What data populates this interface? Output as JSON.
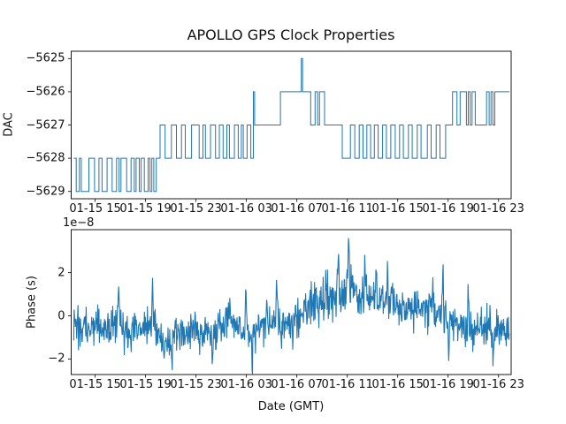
{
  "figure": {
    "background": "#ffffff",
    "line_color": "#1f77b4",
    "axis_color": "#000000"
  },
  "chart_data": [
    {
      "type": "line",
      "subplot": "top",
      "title": "APOLLO GPS Clock Properties",
      "ylabel": "DAC",
      "xlim_hours": [
        13.1,
        48.0
      ],
      "ylim": [
        -5629.22,
        -5624.78
      ],
      "ytick_values": [
        -5625,
        -5626,
        -5627,
        -5628,
        -5629
      ],
      "yticklabels": [
        "−5625",
        "−5626",
        "−5627",
        "−5628",
        "−5629"
      ],
      "xtick_hours": [
        15,
        19,
        23,
        27,
        31,
        35,
        39,
        43,
        47
      ],
      "xticklabels": [
        "01-15 15",
        "01-15 19",
        "01-15 23",
        "01-16 03",
        "01-16 07",
        "01-16 11",
        "01-16 15",
        "01-16 19",
        "01-16 23"
      ],
      "grid": false,
      "step_points": [
        [
          13.3,
          -5628
        ],
        [
          13.5,
          -5629
        ],
        [
          13.75,
          -5628
        ],
        [
          13.9,
          -5629
        ],
        [
          14.5,
          -5628
        ],
        [
          14.95,
          -5629
        ],
        [
          15.3,
          -5628
        ],
        [
          15.55,
          -5629
        ],
        [
          15.95,
          -5628
        ],
        [
          16.35,
          -5629
        ],
        [
          16.7,
          -5628
        ],
        [
          16.9,
          -5629
        ],
        [
          17.05,
          -5628
        ],
        [
          17.5,
          -5629
        ],
        [
          17.85,
          -5628
        ],
        [
          18.1,
          -5629
        ],
        [
          18.25,
          -5628
        ],
        [
          18.5,
          -5629
        ],
        [
          18.65,
          -5628
        ],
        [
          18.9,
          -5629
        ],
        [
          19.2,
          -5628
        ],
        [
          19.35,
          -5629
        ],
        [
          19.5,
          -5628
        ],
        [
          19.65,
          -5629
        ],
        [
          19.85,
          -5628
        ],
        [
          20.15,
          -5627
        ],
        [
          20.55,
          -5628
        ],
        [
          21.05,
          -5627
        ],
        [
          21.45,
          -5628
        ],
        [
          21.85,
          -5627
        ],
        [
          22.15,
          -5628
        ],
        [
          22.65,
          -5627
        ],
        [
          23.25,
          -5628
        ],
        [
          23.55,
          -5627
        ],
        [
          23.75,
          -5628
        ],
        [
          24.15,
          -5627
        ],
        [
          24.55,
          -5628
        ],
        [
          24.85,
          -5627
        ],
        [
          25.15,
          -5628
        ],
        [
          25.45,
          -5627
        ],
        [
          25.65,
          -5628
        ],
        [
          26.05,
          -5627
        ],
        [
          26.35,
          -5628
        ],
        [
          26.6,
          -5627
        ],
        [
          26.75,
          -5628
        ],
        [
          27.05,
          -5627
        ],
        [
          27.35,
          -5628
        ],
        [
          27.55,
          -5626
        ],
        [
          27.65,
          -5627
        ],
        [
          29.7,
          -5626
        ],
        [
          31.35,
          -5625
        ],
        [
          31.45,
          -5626
        ],
        [
          32.1,
          -5627
        ],
        [
          32.45,
          -5626
        ],
        [
          32.65,
          -5627
        ],
        [
          32.8,
          -5626
        ],
        [
          33.2,
          -5627
        ],
        [
          34.6,
          -5628
        ],
        [
          35.25,
          -5627
        ],
        [
          35.6,
          -5628
        ],
        [
          35.95,
          -5627
        ],
        [
          36.25,
          -5628
        ],
        [
          36.55,
          -5627
        ],
        [
          36.85,
          -5628
        ],
        [
          37.15,
          -5627
        ],
        [
          37.45,
          -5628
        ],
        [
          37.8,
          -5627
        ],
        [
          38.1,
          -5628
        ],
        [
          38.45,
          -5627
        ],
        [
          38.8,
          -5628
        ],
        [
          39.15,
          -5627
        ],
        [
          39.45,
          -5628
        ],
        [
          39.85,
          -5627
        ],
        [
          40.15,
          -5628
        ],
        [
          40.55,
          -5627
        ],
        [
          40.85,
          -5628
        ],
        [
          41.35,
          -5627
        ],
        [
          41.65,
          -5628
        ],
        [
          42.05,
          -5627
        ],
        [
          42.35,
          -5628
        ],
        [
          42.8,
          -5627
        ],
        [
          43.35,
          -5626
        ],
        [
          43.7,
          -5627
        ],
        [
          43.95,
          -5626
        ],
        [
          44.45,
          -5627
        ],
        [
          44.6,
          -5626
        ],
        [
          44.75,
          -5627
        ],
        [
          44.9,
          -5626
        ],
        [
          45.15,
          -5627
        ],
        [
          46.05,
          -5626
        ],
        [
          46.25,
          -5627
        ],
        [
          46.4,
          -5626
        ],
        [
          46.55,
          -5627
        ],
        [
          46.7,
          -5626
        ],
        [
          47.85,
          -5626
        ]
      ]
    },
    {
      "type": "line",
      "subplot": "bottom",
      "ylabel": "Phase (s)",
      "xlabel": "Date (GMT)",
      "offset_text": "1e−8",
      "unit": "1e-8 s",
      "xlim_hours": [
        13.1,
        48.0
      ],
      "ylim": [
        -2.72,
        3.99
      ],
      "ytick_values": [
        2,
        0,
        -2
      ],
      "yticklabels": [
        "2",
        "0",
        "−2"
      ],
      "xtick_hours": [
        15,
        19,
        23,
        27,
        31,
        35,
        39,
        43,
        47
      ],
      "xticklabels": [
        "01-15 15",
        "01-15 19",
        "01-15 23",
        "01-16 03",
        "01-16 07",
        "01-16 11",
        "01-16 15",
        "01-16 19",
        "01-16 23"
      ],
      "grid": false,
      "noise_model": {
        "seed": 20,
        "t0": 13.3,
        "t1": 47.85,
        "dt": 0.034,
        "trend": [
          [
            13.3,
            -0.6
          ],
          [
            14.5,
            -0.55
          ],
          [
            16,
            -0.5
          ],
          [
            16.8,
            -0.35
          ],
          [
            17.6,
            -0.7
          ],
          [
            18.5,
            -0.55
          ],
          [
            19.3,
            -0.35
          ],
          [
            19.9,
            -0.8
          ],
          [
            20.8,
            -1.1
          ],
          [
            21.6,
            -0.8
          ],
          [
            22.5,
            -0.7
          ],
          [
            23.5,
            -0.65
          ],
          [
            24.2,
            -0.8
          ],
          [
            25,
            -0.6
          ],
          [
            25.7,
            -0.25
          ],
          [
            26.3,
            -0.6
          ],
          [
            27,
            -0.8
          ],
          [
            27.6,
            -0.9
          ],
          [
            28.2,
            -0.6
          ],
          [
            28.8,
            -0.35
          ],
          [
            29.4,
            -0.2
          ],
          [
            30,
            -0.4
          ],
          [
            30.6,
            -0.45
          ],
          [
            31.2,
            -0.2
          ],
          [
            31.8,
            0.3
          ],
          [
            32.3,
            0.6
          ],
          [
            32.8,
            0.55
          ],
          [
            33.4,
            0.75
          ],
          [
            34,
            0.9
          ],
          [
            34.6,
            1
          ],
          [
            35.1,
            1.25
          ],
          [
            35.5,
            1
          ],
          [
            36,
            0.85
          ],
          [
            36.6,
            0.9
          ],
          [
            37.2,
            0.7
          ],
          [
            37.8,
            0.65
          ],
          [
            38.4,
            0.6
          ],
          [
            39,
            0.45
          ],
          [
            39.6,
            0.5
          ],
          [
            40.2,
            0.3
          ],
          [
            40.8,
            0.35
          ],
          [
            41.4,
            0.2
          ],
          [
            42,
            0.15
          ],
          [
            42.6,
            0
          ],
          [
            43.2,
            -0.4
          ],
          [
            43.8,
            -0.3
          ],
          [
            44.4,
            -0.45
          ],
          [
            45,
            -0.55
          ],
          [
            45.6,
            -0.5
          ],
          [
            46.2,
            -0.6
          ],
          [
            46.8,
            -0.55
          ],
          [
            47.4,
            -0.6
          ],
          [
            47.85,
            -0.8
          ]
        ],
        "sigma": [
          [
            13.3,
            0.42
          ],
          [
            29,
            0.44
          ],
          [
            31,
            0.5
          ],
          [
            36,
            0.52
          ],
          [
            40,
            0.46
          ],
          [
            47.85,
            0.42
          ]
        ],
        "spikes": [
          [
            16.85,
            1.6
          ],
          [
            17.3,
            -1.2
          ],
          [
            19.55,
            2.4
          ],
          [
            20.5,
            -1.2
          ],
          [
            21.1,
            -1.3
          ],
          [
            23.3,
            -0.9
          ],
          [
            24.3,
            -1.6
          ],
          [
            25.7,
            1.2
          ],
          [
            26.95,
            2.3
          ],
          [
            27.45,
            -1.5
          ],
          [
            28.6,
            1.5
          ],
          [
            29.4,
            2.5
          ],
          [
            30.9,
            1.3
          ],
          [
            33.3,
            1.4
          ],
          [
            34.3,
            1.7
          ],
          [
            35.1,
            2.5
          ],
          [
            36.4,
            1.7
          ],
          [
            37.3,
            1.1
          ],
          [
            38.2,
            1.4
          ],
          [
            39.3,
            -1.2
          ],
          [
            41.8,
            1.6
          ],
          [
            42.6,
            2.1
          ],
          [
            43.05,
            -1.8
          ],
          [
            44.6,
            1.5
          ],
          [
            46.6,
            -1.4
          ]
        ]
      }
    }
  ]
}
